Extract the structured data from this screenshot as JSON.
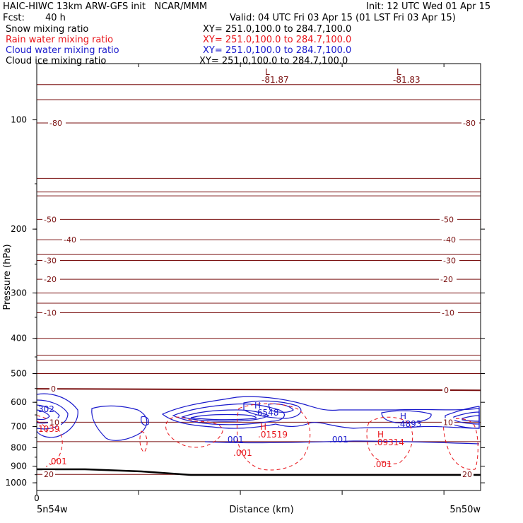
{
  "header": {
    "title_left": "HAIC-HIWC 13km ARW-GFS init   NCAR/MMM",
    "init": "Init: 12 UTC Wed 01 Apr 15",
    "fcst_label": "Fcst:",
    "fcst_value": "40 h",
    "valid": "Valid: 04 UTC Fri 03 Apr 15 (01 LST Fri 03 Apr 15)",
    "fields": [
      {
        "name": "Snow mixing ratio",
        "xy": "XY= 251.0,100.0 to 284.7,100.0",
        "color": "#000000"
      },
      {
        "name": "Rain water mixing ratio",
        "xy": "XY= 251.0,100.0 to 284.7,100.0",
        "color": "#e8141a"
      },
      {
        "name": "Cloud water mixing ratio",
        "xy": "XY= 251.0,100.0 to 284.7,100.0",
        "color": "#1a1acc"
      },
      {
        "name": "Cloud ice mixing ratio",
        "xy": "XY= 251.0,100.0 to 284.7,100.0",
        "color": "#000000"
      }
    ]
  },
  "chart_data": {
    "type": "contour",
    "ylabel": "Pressure (hPa)",
    "xlabel": "Distance (km)",
    "y_scale": "log",
    "ylim": [
      1050,
      70
    ],
    "y_ticks": [
      100,
      200,
      300,
      400,
      500,
      600,
      700,
      800,
      900,
      1000
    ],
    "x_tick_label": "0",
    "x_endpoints": [
      "5n54w",
      "5n50w"
    ],
    "colors": {
      "temperature": "#7a1010",
      "rain": "#e8141a",
      "cloud_water": "#1a1acc",
      "terrain": "#000000"
    },
    "temperature_isotherms": [
      {
        "label": "-80",
        "left_p": 102,
        "right_p": 102
      },
      {
        "label": "-50",
        "left_p": 188,
        "right_p": 188
      },
      {
        "label": "-40",
        "left_p": 214,
        "right_p": 214
      },
      {
        "label": "-30",
        "left_p": 244,
        "right_p": 244
      },
      {
        "label": "-20",
        "left_p": 275,
        "right_p": 275
      },
      {
        "label": "-10",
        "left_p": 340,
        "right_p": 340
      },
      {
        "label": "0",
        "left_p": 551,
        "right_p": 556
      },
      {
        "label": "10",
        "left_p": 681,
        "right_p": 681
      },
      {
        "label": "20",
        "left_p": 948,
        "right_p": 948
      }
    ],
    "extra_isotherm_pressures": [
      80,
      88,
      145,
      158,
      162,
      235,
      300,
      320,
      400,
      445,
      460,
      500,
      770
    ],
    "annotations": [
      {
        "text": "L",
        "kind": "min"
      },
      {
        "text": "-81.87",
        "kind": "min_value"
      },
      {
        "text": "L",
        "kind": "min"
      },
      {
        "text": "-81.83",
        "kind": "min_value"
      },
      {
        "text": "302",
        "kind": "cloud_value"
      },
      {
        "text": "1039",
        "kind": "rain_value"
      },
      {
        "text": ".001",
        "kind": "rain_value"
      },
      {
        "text": "H",
        "kind": "max"
      },
      {
        "text": ".6548",
        "kind": "cloud_max"
      },
      {
        "text": "H",
        "kind": "max"
      },
      {
        "text": ".01519",
        "kind": "rain_max"
      },
      {
        "text": ".001",
        "kind": "cloud_value"
      },
      {
        "text": ".001",
        "kind": "rain_value"
      },
      {
        "text": ".001",
        "kind": "cloud_value"
      },
      {
        "text": "H",
        "kind": "max"
      },
      {
        "text": ".4893",
        "kind": "cloud_max"
      },
      {
        "text": "H",
        "kind": "max"
      },
      {
        "text": ".09314",
        "kind": "rain_max"
      },
      {
        "text": ".001",
        "kind": "rain_value"
      }
    ]
  }
}
